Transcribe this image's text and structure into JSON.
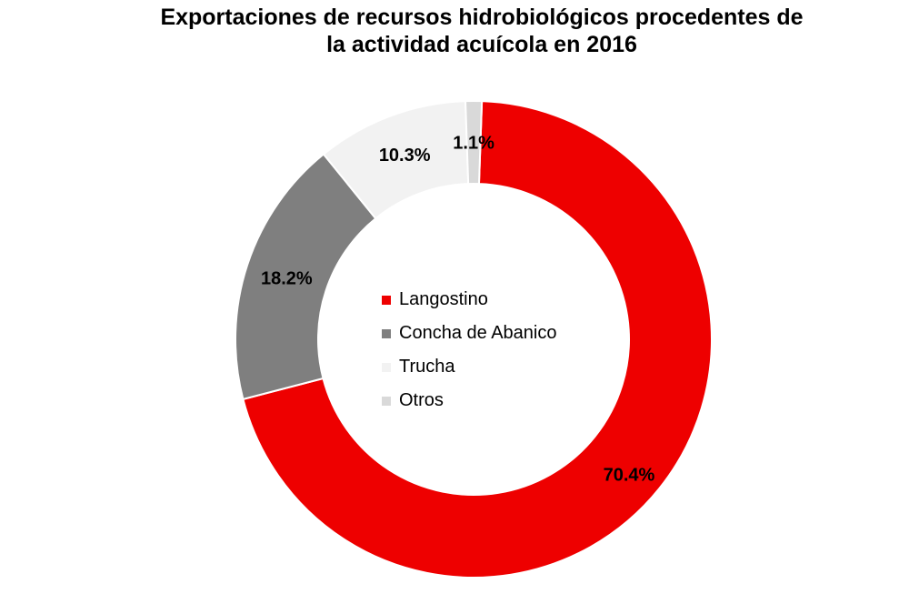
{
  "chart_data": {
    "type": "pie",
    "style": "donut",
    "title_lines": [
      "Exportaciones de recursos hidrobiológicos procedentes de",
      "la actividad acuícola en 2016"
    ],
    "series": [
      {
        "name": "Langostino",
        "value": 70.4,
        "label": "70.4%",
        "color": "#ee0000"
      },
      {
        "name": "Concha de Abanico",
        "value": 18.2,
        "label": "18.2%",
        "color": "#7f7f7f"
      },
      {
        "name": "Trucha",
        "value": 10.3,
        "label": "10.3%",
        "color": "#f2f2f2"
      },
      {
        "name": "Otros",
        "value": 1.1,
        "label": "1.1%",
        "color": "#d9d9d9"
      }
    ],
    "legend_position": "center"
  }
}
